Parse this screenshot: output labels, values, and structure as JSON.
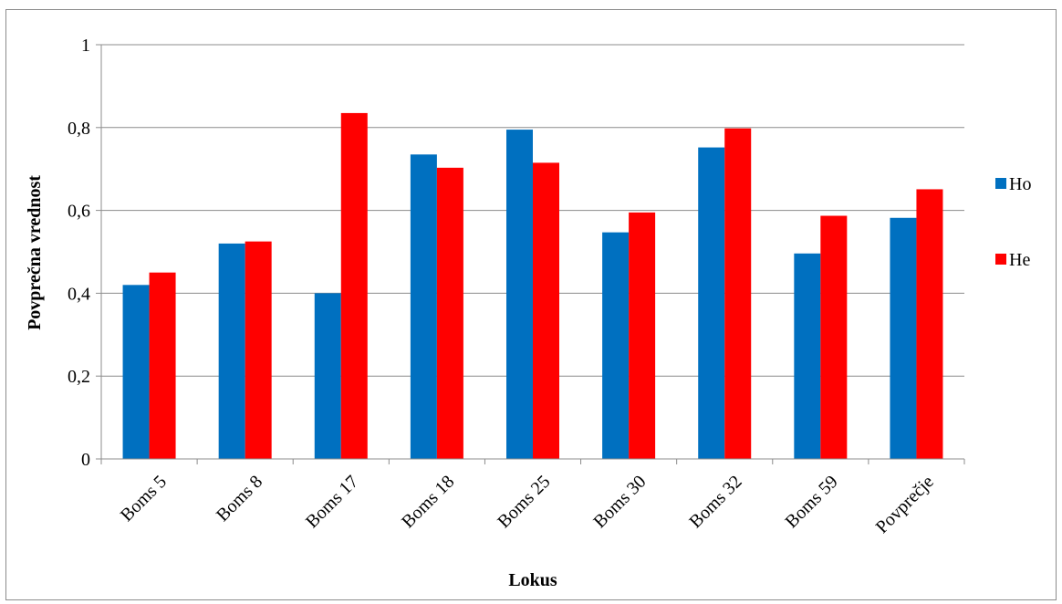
{
  "chart_data": {
    "type": "bar",
    "xlabel": "Lokus",
    "ylabel": "Povprečna vrednost",
    "ylim": [
      0,
      1
    ],
    "yticks": [
      "0",
      "0,2",
      "0,4",
      "0,6",
      "0,8",
      "1"
    ],
    "yticks_values": [
      0,
      0.2,
      0.4,
      0.6,
      0.8,
      1
    ],
    "grid": true,
    "legend_position": "right",
    "categories": [
      "Boms 5",
      "Boms 8",
      "Boms 17",
      "Boms 18",
      "Boms 25",
      "Boms 30",
      "Boms 32",
      "Boms 59",
      "Povprečje"
    ],
    "series": [
      {
        "name": "Ho",
        "color": "#0070C0",
        "values": [
          0.42,
          0.52,
          0.4,
          0.735,
          0.795,
          0.547,
          0.752,
          0.496,
          0.582
        ]
      },
      {
        "name": "He",
        "color": "#FF0000",
        "values": [
          0.45,
          0.525,
          0.835,
          0.703,
          0.715,
          0.595,
          0.798,
          0.587,
          0.651
        ]
      }
    ]
  }
}
